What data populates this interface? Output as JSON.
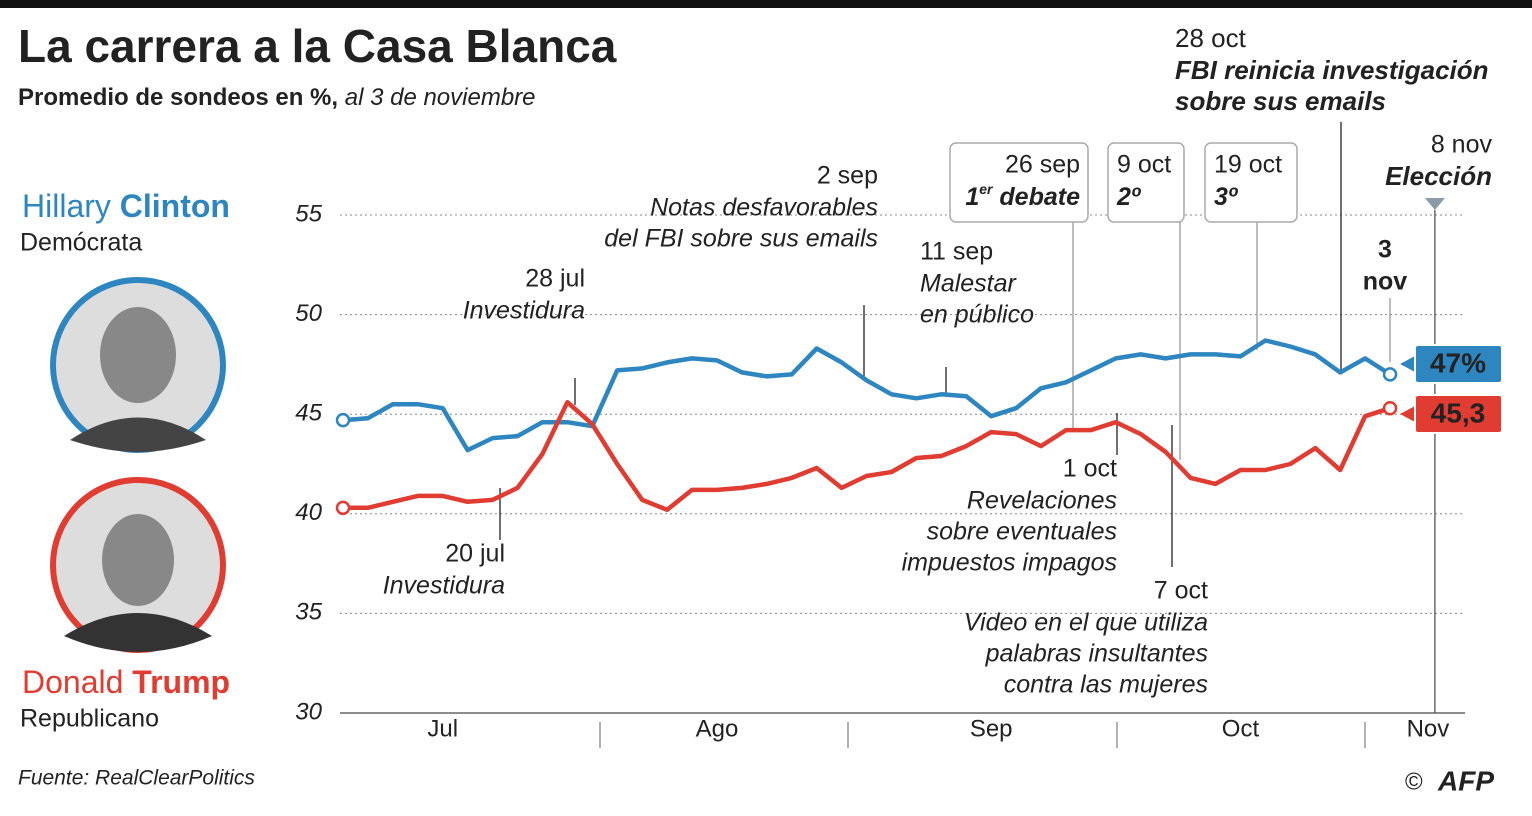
{
  "chart_data": {
    "type": "line",
    "title": "La carrera a la Casa Blanca",
    "subtitle": "Promedio de sondeos en %,",
    "subtitle_date": "al 3 de noviembre",
    "categories": [
      null,
      null,
      null,
      null,
      "Jul",
      null,
      null,
      null,
      null,
      null,
      null,
      null,
      null,
      null,
      null,
      "Ago",
      null,
      null,
      null,
      null,
      null,
      null,
      null,
      null,
      null,
      null,
      "Sep",
      null,
      null,
      null,
      null,
      null,
      null,
      null,
      null,
      null,
      "Oct",
      null,
      null,
      null,
      null,
      null,
      null,
      null,
      "Nov"
    ],
    "series": [
      {
        "name": "Clinton",
        "first_name": "Hillary",
        "party": "Demócrata",
        "color": "#2e86c1",
        "values": [
          44.7,
          44.8,
          45.5,
          45.5,
          45.3,
          43.2,
          43.8,
          43.9,
          44.6,
          44.6,
          44.4,
          47.2,
          47.3,
          47.6,
          47.8,
          47.7,
          47.1,
          46.9,
          47.0,
          48.3,
          47.6,
          46.7,
          46.0,
          45.8,
          46.0,
          45.9,
          44.9,
          45.3,
          46.3,
          46.6,
          47.2,
          47.8,
          48.0,
          47.8,
          48.0,
          48.0,
          47.9,
          48.7,
          48.4,
          48.0,
          47.1,
          47.8,
          47,
          null,
          null
        ],
        "value_labels": [
          null,
          null,
          null,
          null,
          null,
          null,
          null,
          null,
          null,
          null,
          null,
          null,
          null,
          null,
          null,
          null,
          null,
          null,
          null,
          null,
          null,
          null,
          null,
          null,
          null,
          null,
          null,
          null,
          null,
          null,
          null,
          null,
          null,
          null,
          null,
          null,
          null,
          null,
          null,
          null,
          null,
          null,
          "47%",
          null,
          null
        ]
      },
      {
        "name": "Trump",
        "first_name": "Donald",
        "party": "Republicano",
        "color": "#e03c31",
        "values": [
          40.3,
          40.3,
          40.6,
          40.9,
          40.9,
          40.6,
          40.7,
          41.3,
          43.0,
          45.6,
          44.5,
          42.5,
          40.7,
          40.2,
          41.2,
          41.2,
          41.3,
          41.5,
          41.8,
          42.3,
          41.3,
          41.9,
          42.1,
          42.8,
          42.9,
          43.4,
          44.1,
          44.0,
          43.4,
          44.2,
          44.2,
          44.6,
          44.0,
          43.1,
          41.8,
          41.5,
          42.2,
          42.2,
          42.5,
          43.3,
          42.2,
          44.9,
          45.3,
          null,
          null
        ],
        "value_labels": [
          null,
          null,
          null,
          null,
          null,
          null,
          null,
          null,
          null,
          null,
          null,
          null,
          null,
          null,
          null,
          null,
          null,
          null,
          null,
          null,
          null,
          null,
          null,
          null,
          null,
          null,
          null,
          null,
          null,
          null,
          null,
          null,
          null,
          null,
          null,
          null,
          null,
          null,
          null,
          null,
          null,
          null,
          "45,3",
          null,
          null
        ]
      }
    ],
    "ylim": [
      30,
      55
    ],
    "yticks": [
      30,
      35,
      40,
      45,
      50,
      55
    ],
    "grid": true,
    "annotations": [
      {
        "date": "20 jul",
        "text": [
          "Investidura"
        ]
      },
      {
        "date": "28 jul",
        "text": [
          "Investidura"
        ]
      },
      {
        "date": "2 sep",
        "text": [
          "Notas desfavorables",
          "del FBI sobre sus emails"
        ]
      },
      {
        "date": "11 sep",
        "text": [
          "Malestar",
          "en público"
        ]
      },
      {
        "date": "1 oct",
        "text": [
          "Revelaciones",
          "sobre eventuales",
          "impuestos impagos"
        ]
      },
      {
        "date": "7 oct",
        "text": [
          "Video en el que utiliza",
          "palabras insultantes",
          "contra las mujeres"
        ]
      },
      {
        "date": "28 oct",
        "text": [
          "FBI reinicia investigación",
          "sobre sus emails"
        ]
      }
    ],
    "debates": [
      {
        "date": "26 sep",
        "text": "1",
        "sup": "er",
        "rest": " debate"
      },
      {
        "date": "9 oct",
        "text": "2º"
      },
      {
        "date": "19 oct",
        "text": "3º"
      }
    ],
    "last_poll": [
      "3",
      "nov"
    ],
    "election": {
      "date": "8 nov",
      "text": "Elección"
    },
    "source": "Fuente: RealClearPolitics",
    "copyright": "©",
    "agency": "AFP"
  }
}
